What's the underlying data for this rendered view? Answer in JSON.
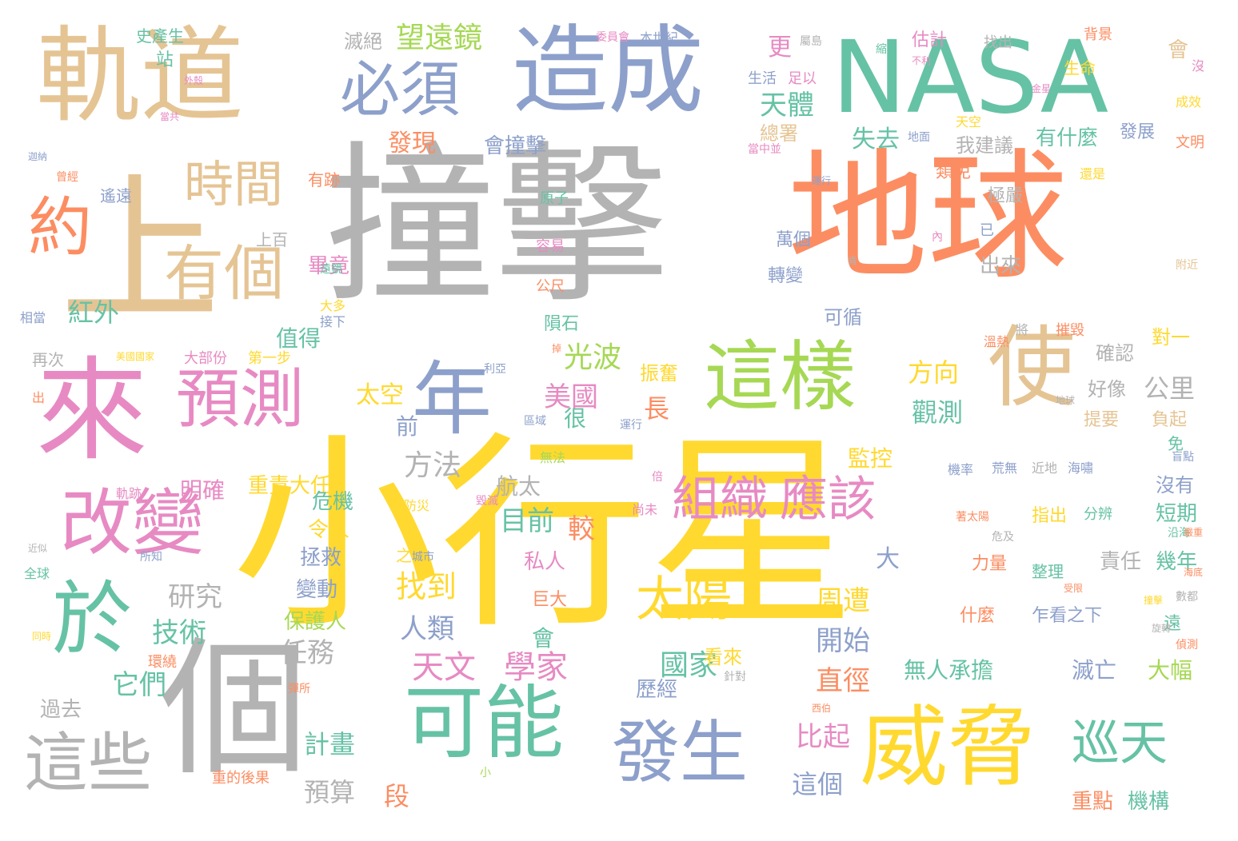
{
  "palette": {
    "yellow": "#ffd92f",
    "gray": "#b3b3b3",
    "orange": "#fc8d62",
    "green": "#66c2a5",
    "blue": "#8da0cb",
    "pink": "#e78ac3",
    "tan": "#e5c494",
    "lime": "#a6d854"
  },
  "words": [
    {
      "id": "w0",
      "text": "小行星",
      "color": "yellow",
      "orient": "h"
    },
    {
      "id": "w1",
      "text": "撞擊",
      "color": "gray",
      "orient": "h"
    },
    {
      "id": "w2",
      "text": "地球",
      "color": "orange",
      "orient": "h"
    },
    {
      "id": "w3",
      "text": "NASA",
      "color": "green",
      "orient": "h"
    },
    {
      "id": "w4",
      "text": "軌道",
      "color": "tan",
      "orient": "h"
    },
    {
      "id": "w5",
      "text": "造成",
      "color": "blue",
      "orient": "h"
    },
    {
      "id": "w6",
      "text": "上",
      "color": "tan",
      "orient": "h"
    },
    {
      "id": "w7",
      "text": "來",
      "color": "pink",
      "orient": "h"
    },
    {
      "id": "w8",
      "text": "個",
      "color": "gray",
      "orient": "h"
    },
    {
      "id": "w9",
      "text": "這樣",
      "color": "lime",
      "orient": "h"
    },
    {
      "id": "w10",
      "text": "使",
      "color": "tan",
      "orient": "h"
    },
    {
      "id": "w11",
      "text": "威脅",
      "color": "yellow",
      "orient": "h"
    },
    {
      "id": "w12",
      "text": "可能",
      "color": "green",
      "orient": "h"
    },
    {
      "id": "w13",
      "text": "發生",
      "color": "blue",
      "orient": "h"
    },
    {
      "id": "w14",
      "text": "這些",
      "color": "gray",
      "orient": "h"
    },
    {
      "id": "w15",
      "text": "改變",
      "color": "pink",
      "orient": "h"
    },
    {
      "id": "w16",
      "text": "預測",
      "color": "pink",
      "orient": "h"
    },
    {
      "id": "w17",
      "text": "年",
      "color": "blue",
      "orient": "h"
    },
    {
      "id": "w18",
      "text": "必須",
      "color": "blue",
      "orient": "h"
    },
    {
      "id": "w19",
      "text": "於",
      "color": "green",
      "orient": "h"
    },
    {
      "id": "w20",
      "text": "約",
      "color": "orange",
      "orient": "h"
    },
    {
      "id": "w21",
      "text": "時間",
      "color": "tan",
      "orient": "h"
    },
    {
      "id": "w22",
      "text": "有個",
      "color": "tan",
      "orient": "h"
    },
    {
      "id": "w23",
      "text": "組織",
      "color": "pink",
      "orient": "h"
    },
    {
      "id": "w24",
      "text": "應該",
      "color": "pink",
      "orient": "h"
    },
    {
      "id": "w25",
      "text": "太陽",
      "color": "yellow",
      "orient": "h"
    },
    {
      "id": "w26",
      "text": "巡天",
      "color": "green",
      "orient": "h"
    },
    {
      "id": "w27",
      "text": "天文",
      "color": "pink",
      "orient": "h"
    },
    {
      "id": "w28",
      "text": "學家",
      "color": "pink",
      "orient": "h"
    },
    {
      "id": "w29",
      "text": "望遠鏡",
      "color": "lime",
      "orient": "h"
    },
    {
      "id": "w30",
      "text": "天體",
      "color": "green",
      "orient": "h"
    },
    {
      "id": "w31",
      "text": "發現",
      "color": "orange",
      "orient": "h"
    },
    {
      "id": "w32",
      "text": "會撞擊",
      "color": "blue",
      "orient": "h"
    },
    {
      "id": "w33",
      "text": "失去",
      "color": "green",
      "orient": "h"
    },
    {
      "id": "w34",
      "text": "我建議",
      "color": "gray",
      "orient": "h"
    },
    {
      "id": "w35",
      "text": "有什麼",
      "color": "green",
      "orient": "h"
    },
    {
      "id": "w36",
      "text": "光波",
      "color": "lime",
      "orient": "h"
    },
    {
      "id": "w37",
      "text": "美國",
      "color": "pink",
      "orient": "h"
    },
    {
      "id": "w38",
      "text": "方向",
      "color": "yellow",
      "orient": "h"
    },
    {
      "id": "w39",
      "text": "觀測",
      "color": "green",
      "orient": "h"
    },
    {
      "id": "w40",
      "text": "公里",
      "color": "gray",
      "orient": "h"
    },
    {
      "id": "w41",
      "text": "太空",
      "color": "yellow",
      "orient": "h"
    },
    {
      "id": "w42",
      "text": "方法",
      "color": "gray",
      "orient": "h"
    },
    {
      "id": "w43",
      "text": "目前",
      "color": "green",
      "orient": "h"
    },
    {
      "id": "w44",
      "text": "較",
      "color": "orange",
      "orient": "h"
    },
    {
      "id": "w45",
      "text": "研究",
      "color": "gray",
      "orient": "h"
    },
    {
      "id": "w46",
      "text": "技術",
      "color": "green",
      "orient": "h"
    },
    {
      "id": "w47",
      "text": "找到",
      "color": "yellow",
      "orient": "h"
    },
    {
      "id": "w48",
      "text": "人類",
      "color": "blue",
      "orient": "h"
    },
    {
      "id": "w49",
      "text": "任務",
      "color": "gray",
      "orient": "h"
    },
    {
      "id": "w50",
      "text": "它們",
      "color": "green",
      "orient": "h"
    },
    {
      "id": "w51",
      "text": "國家",
      "color": "green",
      "orient": "h"
    },
    {
      "id": "w52",
      "text": "開始",
      "color": "blue",
      "orient": "h"
    },
    {
      "id": "w53",
      "text": "周遭",
      "color": "yellow",
      "orient": "h"
    },
    {
      "id": "w54",
      "text": "直徑",
      "color": "orange",
      "orient": "h"
    },
    {
      "id": "w55",
      "text": "比起",
      "color": "pink",
      "orient": "h"
    },
    {
      "id": "w56",
      "text": "這個",
      "color": "blue",
      "orient": "h"
    },
    {
      "id": "w57",
      "text": "計畫",
      "color": "green",
      "orient": "h"
    },
    {
      "id": "w58",
      "text": "預算",
      "color": "gray",
      "orient": "h"
    },
    {
      "id": "w59",
      "text": "段",
      "color": "orange",
      "orient": "h"
    },
    {
      "id": "w60",
      "text": "紅外",
      "color": "green",
      "orient": "h"
    },
    {
      "id": "w61",
      "text": "值得",
      "color": "green",
      "orient": "h"
    },
    {
      "id": "w62",
      "text": "明確",
      "color": "pink",
      "orient": "h"
    },
    {
      "id": "w63",
      "text": "重責大任",
      "color": "yellow",
      "orient": "h"
    },
    {
      "id": "w64",
      "text": "危機",
      "color": "green",
      "orient": "h"
    },
    {
      "id": "w65",
      "text": "令人",
      "color": "yellow",
      "orient": "h"
    },
    {
      "id": "w66",
      "text": "拯救",
      "color": "blue",
      "orient": "h"
    },
    {
      "id": "w67",
      "text": "變動",
      "color": "blue",
      "orient": "h"
    },
    {
      "id": "w68",
      "text": "保護人",
      "color": "lime",
      "orient": "h"
    },
    {
      "id": "w69",
      "text": "監控",
      "color": "yellow",
      "orient": "h"
    },
    {
      "id": "w70",
      "text": "看來",
      "color": "yellow",
      "orient": "h"
    },
    {
      "id": "w71",
      "text": "歷經",
      "color": "blue",
      "orient": "h"
    },
    {
      "id": "w72",
      "text": "無人承擔",
      "color": "green",
      "orient": "h"
    },
    {
      "id": "w73",
      "text": "滅亡",
      "color": "blue",
      "orient": "h"
    },
    {
      "id": "w74",
      "text": "大幅",
      "color": "lime",
      "orient": "h"
    },
    {
      "id": "w75",
      "text": "重點",
      "color": "orange",
      "orient": "h"
    },
    {
      "id": "w76",
      "text": "機構",
      "color": "green",
      "orient": "h"
    },
    {
      "id": "w77",
      "text": "過去",
      "color": "gray",
      "orient": "h"
    },
    {
      "id": "w78",
      "text": "畢竟",
      "color": "pink",
      "orient": "h"
    },
    {
      "id": "w79",
      "text": "遙遠",
      "color": "blue",
      "orient": "h"
    },
    {
      "id": "w80",
      "text": "有跡",
      "color": "orange",
      "orient": "h"
    },
    {
      "id": "w81",
      "text": "上百",
      "color": "gray",
      "orient": "h"
    },
    {
      "id": "w82",
      "text": "大部份",
      "color": "pink",
      "orient": "h"
    },
    {
      "id": "w83",
      "text": "第一步",
      "color": "yellow",
      "orient": "h"
    },
    {
      "id": "w84",
      "text": "再次",
      "color": "gray",
      "orient": "h"
    },
    {
      "id": "w85",
      "text": "萬個",
      "color": "blue",
      "orient": "h"
    },
    {
      "id": "w86",
      "text": "轉變",
      "color": "blue",
      "orient": "h"
    },
    {
      "id": "w87",
      "text": "出來",
      "color": "gray",
      "orient": "h"
    },
    {
      "id": "w88",
      "text": "可循",
      "color": "blue",
      "orient": "h"
    },
    {
      "id": "w89",
      "text": "確認",
      "color": "gray",
      "orient": "h"
    },
    {
      "id": "w90",
      "text": "好像",
      "color": "gray",
      "orient": "h"
    },
    {
      "id": "w91",
      "text": "提要",
      "color": "tan",
      "orient": "h"
    },
    {
      "id": "w92",
      "text": "負起",
      "color": "tan",
      "orient": "h"
    },
    {
      "id": "w93",
      "text": "沒有",
      "color": "blue",
      "orient": "h"
    },
    {
      "id": "w94",
      "text": "短期",
      "color": "green",
      "orient": "h"
    },
    {
      "id": "w95",
      "text": "幾年",
      "color": "green",
      "orient": "h"
    },
    {
      "id": "w96",
      "text": "責任",
      "color": "gray",
      "orient": "h"
    },
    {
      "id": "w97",
      "text": "力量",
      "color": "orange",
      "orient": "h"
    },
    {
      "id": "w98",
      "text": "整理",
      "color": "green",
      "orient": "h"
    },
    {
      "id": "w99",
      "text": "乍看之下",
      "color": "blue",
      "orient": "h"
    },
    {
      "id": "w100",
      "text": "什麼",
      "color": "orange",
      "orient": "h"
    },
    {
      "id": "w101",
      "text": "指出",
      "color": "yellow",
      "orient": "h"
    },
    {
      "id": "w102",
      "text": "分辨",
      "color": "green",
      "orient": "h"
    },
    {
      "id": "w103",
      "text": "機率",
      "color": "blue",
      "orient": "h"
    },
    {
      "id": "w104",
      "text": "荒無",
      "color": "blue",
      "orient": "h"
    },
    {
      "id": "w105",
      "text": "近地",
      "color": "gray",
      "orient": "h"
    },
    {
      "id": "w106",
      "text": "海嘯",
      "color": "blue",
      "orient": "h"
    },
    {
      "id": "w107",
      "text": "航太",
      "color": "gray",
      "orient": "h"
    },
    {
      "id": "w108",
      "text": "私人",
      "color": "pink",
      "orient": "h"
    },
    {
      "id": "w109",
      "text": "巨大",
      "color": "orange",
      "orient": "h"
    },
    {
      "id": "w110",
      "text": "隕石",
      "color": "green",
      "orient": "h"
    },
    {
      "id": "w111",
      "text": "公尺",
      "color": "orange",
      "orient": "h"
    },
    {
      "id": "w112",
      "text": "容易",
      "color": "pink",
      "orient": "h"
    },
    {
      "id": "w113",
      "text": "原子",
      "color": "green",
      "orient": "h"
    },
    {
      "id": "w114",
      "text": "滅絕",
      "color": "gray",
      "orient": "h"
    },
    {
      "id": "w115",
      "text": "史產生",
      "color": "green",
      "orient": "h"
    },
    {
      "id": "w116",
      "text": "估計",
      "color": "pink",
      "orient": "h"
    },
    {
      "id": "w117",
      "text": "找出",
      "color": "gray",
      "orient": "h"
    },
    {
      "id": "w118",
      "text": "背景",
      "color": "orange",
      "orient": "h"
    },
    {
      "id": "w119",
      "text": "生命",
      "color": "yellow",
      "orient": "h"
    },
    {
      "id": "w120",
      "text": "發展",
      "color": "blue",
      "orient": "h"
    },
    {
      "id": "w121",
      "text": "文明",
      "color": "orange",
      "orient": "h"
    },
    {
      "id": "w122",
      "text": "成效",
      "color": "yellow",
      "orient": "h"
    },
    {
      "id": "w123",
      "text": "總署",
      "color": "tan",
      "orient": "h"
    },
    {
      "id": "w124",
      "text": "類免",
      "color": "orange",
      "orient": "h"
    },
    {
      "id": "w125",
      "text": "極嚴",
      "color": "gray",
      "orient": "h"
    },
    {
      "id": "w126",
      "text": "振奮",
      "color": "yellow",
      "orient": "h"
    },
    {
      "id": "w127",
      "text": "長",
      "color": "orange",
      "orient": "h"
    },
    {
      "id": "w128",
      "text": "前",
      "color": "blue",
      "orient": "h"
    },
    {
      "id": "w129",
      "text": "很",
      "color": "green",
      "orient": "h"
    },
    {
      "id": "w130",
      "text": "大",
      "color": "blue",
      "orient": "h"
    },
    {
      "id": "w131",
      "text": "會",
      "color": "green",
      "orient": "h"
    },
    {
      "id": "w132",
      "text": "更",
      "color": "pink",
      "orient": "h"
    },
    {
      "id": "w133",
      "text": "會",
      "color": "tan",
      "orient": "h"
    },
    {
      "id": "w134",
      "text": "對一",
      "color": "yellow",
      "orient": "h"
    },
    {
      "id": "w135",
      "text": "站",
      "color": "green",
      "orient": "h"
    },
    {
      "id": "w136",
      "text": "免",
      "color": "green",
      "orient": "h"
    },
    {
      "id": "w137",
      "text": "遠",
      "color": "green",
      "orient": "h"
    },
    {
      "id": "w138",
      "text": "生活",
      "color": "blue",
      "orient": "h"
    },
    {
      "id": "w139",
      "text": "足以",
      "color": "pink",
      "orient": "h"
    },
    {
      "id": "w140",
      "text": "本世紀",
      "color": "blue",
      "orient": "h"
    },
    {
      "id": "w141",
      "text": "委員會",
      "color": "pink",
      "orient": "h"
    },
    {
      "id": "w142",
      "text": "環繞",
      "color": "orange",
      "orient": "h"
    },
    {
      "id": "w143",
      "text": "全球",
      "color": "green",
      "orient": "h"
    },
    {
      "id": "w144",
      "text": "所知",
      "color": "blue",
      "orient": "h"
    },
    {
      "id": "w145",
      "text": "相當",
      "color": "blue",
      "orient": "h"
    },
    {
      "id": "w146",
      "text": "之內",
      "color": "yellow",
      "orient": "h"
    },
    {
      "id": "w147",
      "text": "防災",
      "color": "yellow",
      "orient": "h"
    },
    {
      "id": "w148",
      "text": "無法",
      "color": "lime",
      "orient": "h"
    },
    {
      "id": "w149",
      "text": "尚未",
      "color": "pink",
      "orient": "h"
    },
    {
      "id": "w150",
      "text": "運行",
      "color": "blue",
      "orient": "h"
    },
    {
      "id": "w151",
      "text": "區域",
      "color": "blue",
      "orient": "h"
    },
    {
      "id": "w152",
      "text": "利亞",
      "color": "blue",
      "orient": "h"
    },
    {
      "id": "w153",
      "text": "毀滅",
      "color": "pink",
      "orient": "h"
    },
    {
      "id": "w154",
      "text": "城市",
      "color": "blue",
      "orient": "h"
    },
    {
      "id": "w155",
      "text": "遠鏡",
      "color": "green",
      "orient": "h"
    },
    {
      "id": "w156",
      "text": "大多",
      "color": "yellow",
      "orient": "h"
    },
    {
      "id": "w157",
      "text": "接下",
      "color": "blue",
      "orient": "h"
    },
    {
      "id": "w158",
      "text": "重的後果",
      "color": "orange",
      "orient": "h"
    },
    {
      "id": "w159",
      "text": "彈所",
      "color": "orange",
      "orient": "h"
    },
    {
      "id": "w160",
      "text": "針對",
      "color": "gray",
      "orient": "h"
    },
    {
      "id": "w161",
      "text": "西伯",
      "color": "orange",
      "orient": "h"
    },
    {
      "id": "w162",
      "text": "危及",
      "color": "gray",
      "orient": "h"
    },
    {
      "id": "w163",
      "text": "受限",
      "color": "orange",
      "orient": "h"
    },
    {
      "id": "w164",
      "text": "盲點",
      "color": "blue",
      "orient": "h"
    },
    {
      "id": "w165",
      "text": "沿海",
      "color": "green",
      "orient": "h"
    },
    {
      "id": "w166",
      "text": "偵測",
      "color": "orange",
      "orient": "h"
    },
    {
      "id": "w167",
      "text": "數都",
      "color": "gray",
      "orient": "h"
    },
    {
      "id": "w168",
      "text": "溫熱",
      "color": "orange",
      "orient": "h"
    },
    {
      "id": "w169",
      "text": "摧毀",
      "color": "orange",
      "orient": "h"
    },
    {
      "id": "w170",
      "text": "附近",
      "color": "tan",
      "orient": "h"
    },
    {
      "id": "w171",
      "text": "還是",
      "color": "yellow",
      "orient": "h"
    },
    {
      "id": "w172",
      "text": "地面",
      "color": "blue",
      "orient": "h"
    },
    {
      "id": "w173",
      "text": "天空",
      "color": "yellow",
      "orient": "h"
    },
    {
      "id": "w174",
      "text": "當中並",
      "color": "pink",
      "orient": "h"
    },
    {
      "id": "w175",
      "text": "屬島",
      "color": "gray",
      "orient": "h"
    },
    {
      "id": "w176",
      "text": "不利",
      "color": "pink",
      "orient": "h"
    },
    {
      "id": "w177",
      "text": "縮",
      "color": "green",
      "orient": "h"
    },
    {
      "id": "w178",
      "text": "金星",
      "color": "pink",
      "orient": "h"
    },
    {
      "id": "w179",
      "text": "外殼",
      "color": "pink",
      "orient": "h"
    },
    {
      "id": "w180",
      "text": "當共",
      "color": "pink",
      "orient": "h"
    },
    {
      "id": "w181",
      "text": "曾經",
      "color": "orange",
      "orient": "h"
    },
    {
      "id": "w182",
      "text": "迦納",
      "color": "blue",
      "orient": "h"
    },
    {
      "id": "w183",
      "text": "軌跡",
      "color": "pink",
      "orient": "h"
    },
    {
      "id": "w184",
      "text": "近似",
      "color": "gray",
      "orient": "h"
    },
    {
      "id": "w185",
      "text": "同時",
      "color": "yellow",
      "orient": "h"
    },
    {
      "id": "w186",
      "text": "出",
      "color": "orange",
      "orient": "h"
    },
    {
      "id": "w187",
      "text": "美國國家",
      "color": "yellow",
      "orient": "h"
    },
    {
      "id": "w188",
      "text": "倍",
      "color": "pink",
      "orient": "h"
    },
    {
      "id": "w189",
      "text": "小",
      "color": "lime",
      "orient": "h"
    },
    {
      "id": "w190",
      "text": "已",
      "color": "blue",
      "orient": "h"
    },
    {
      "id": "w191",
      "text": "內",
      "color": "pink",
      "orient": "h"
    },
    {
      "id": "w192",
      "text": "肯",
      "color": "gray",
      "orient": "h"
    },
    {
      "id": "w193",
      "text": "將",
      "color": "gray",
      "orient": "h"
    },
    {
      "id": "w194",
      "text": "沒",
      "color": "pink",
      "orient": "h"
    },
    {
      "id": "w195",
      "text": "著太陽",
      "color": "orange",
      "orient": "h"
    },
    {
      "id": "w196",
      "text": "運行",
      "color": "blue",
      "orient": "h"
    },
    {
      "id": "w197",
      "text": "掉",
      "color": "orange",
      "orient": "h"
    },
    {
      "id": "w198",
      "text": "地球",
      "color": "gray",
      "orient": "h"
    },
    {
      "id": "w199",
      "text": "撞擊",
      "color": "yellow",
      "orient": "h"
    },
    {
      "id": "w200",
      "text": "旋轉",
      "color": "gray",
      "orient": "h"
    },
    {
      "id": "w201",
      "text": "海底",
      "color": "orange",
      "orient": "h"
    },
    {
      "id": "w202",
      "text": "嚴重",
      "color": "orange",
      "orient": "h"
    }
  ]
}
